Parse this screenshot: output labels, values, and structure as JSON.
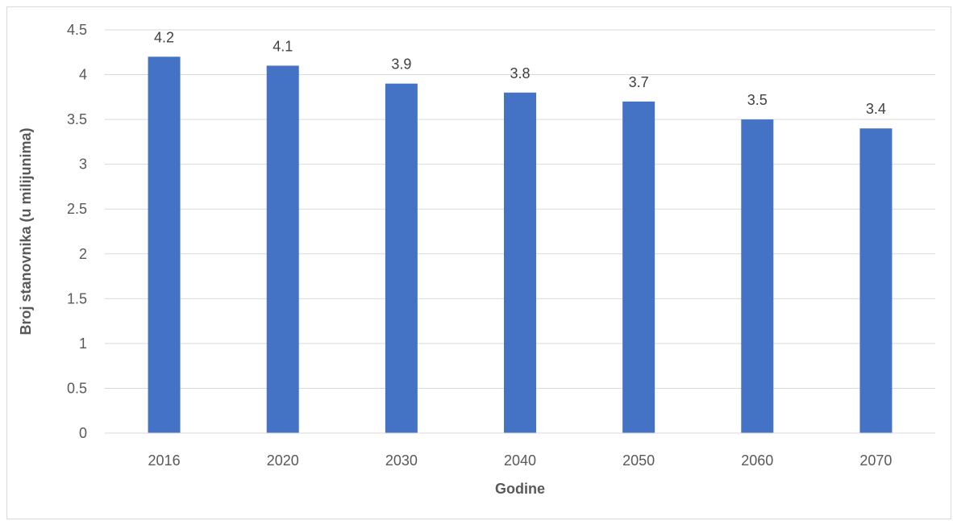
{
  "chart_data": {
    "type": "bar",
    "title": "",
    "xlabel": "Godine",
    "ylabel": "Broj stanovnika (u milijunima)",
    "categories": [
      "2016",
      "2020",
      "2030",
      "2040",
      "2050",
      "2060",
      "2070"
    ],
    "values": [
      4.2,
      4.1,
      3.9,
      3.8,
      3.7,
      3.5,
      3.4
    ],
    "data_labels": [
      "4.2",
      "4.1",
      "3.9",
      "3.8",
      "3.7",
      "3.5",
      "3.4"
    ],
    "ylim": [
      0,
      4.5
    ],
    "yticks": [
      "0",
      "0.5",
      "1",
      "1.5",
      "2",
      "2.5",
      "3",
      "3.5",
      "4",
      "4.5"
    ],
    "grid": true,
    "legend": "none",
    "bar_color": "#4472c4",
    "grid_color": "#d9d9d9"
  }
}
